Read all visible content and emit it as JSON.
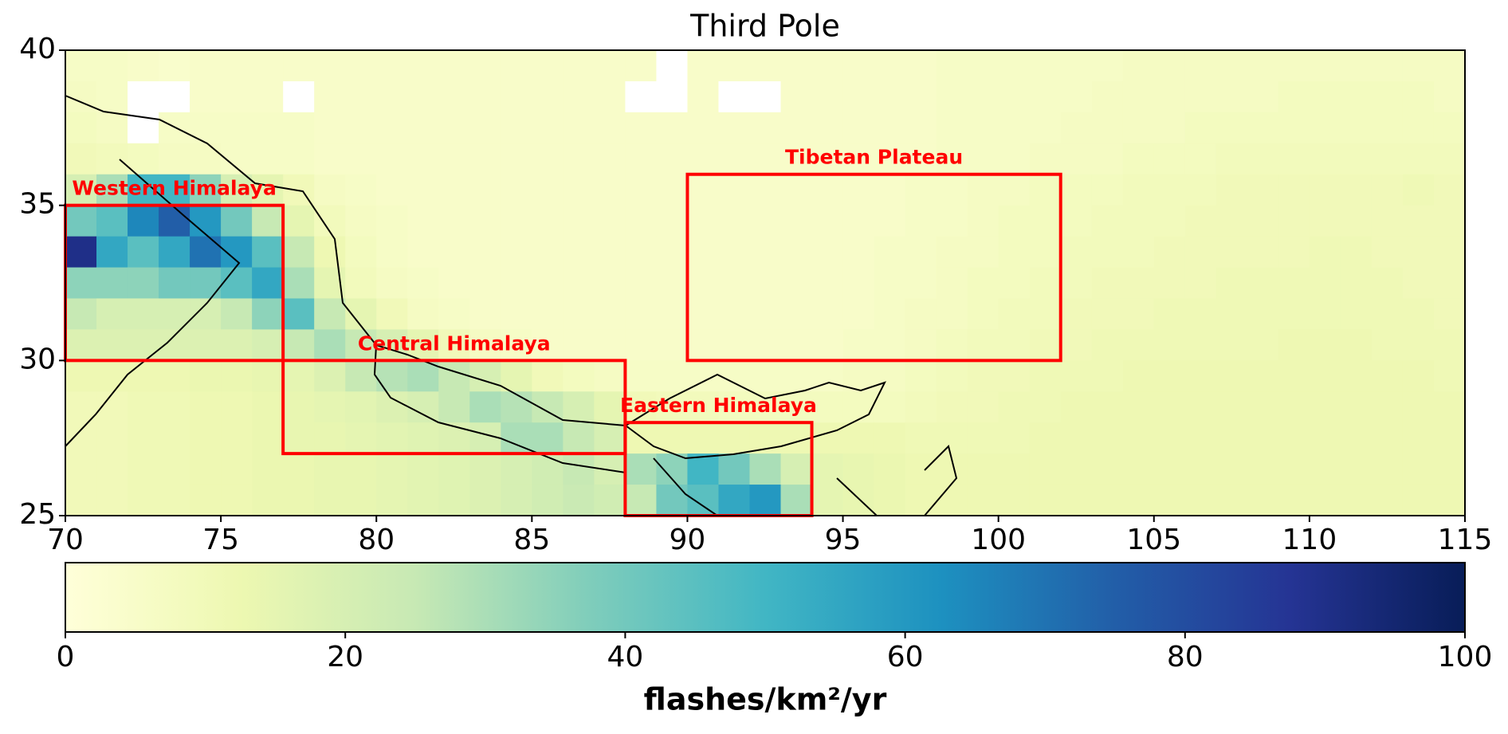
{
  "chart_data": {
    "type": "heatmap",
    "title": "Third Pole",
    "xlim": [
      70,
      115
    ],
    "xticks": [
      70,
      75,
      80,
      85,
      90,
      95,
      100,
      105,
      110,
      115
    ],
    "ylim": [
      25,
      40
    ],
    "yticks": [
      25,
      30,
      35,
      40
    ],
    "x": [
      70.5,
      71.5,
      72.5,
      73.5,
      74.5,
      75.5,
      76.5,
      77.5,
      78.5,
      79.5,
      80.5,
      81.5,
      82.5,
      83.5,
      84.5,
      85.5,
      86.5,
      87.5,
      88.5,
      89.5,
      90.5,
      91.5,
      92.5,
      93.5,
      94.5,
      95.5,
      96.5,
      97.5,
      98.5,
      99.5,
      100.5,
      101.5,
      102.5,
      103.5,
      104.5,
      105.5,
      106.5,
      107.5,
      108.5,
      109.5,
      110.5,
      111.5,
      112.5,
      113.5,
      114.5
    ],
    "y": [
      39.5,
      38.5,
      37.5,
      36.5,
      35.5,
      34.5,
      33.5,
      32.5,
      31.5,
      30.5,
      29.5,
      28.5,
      27.5,
      26.5,
      25.5
    ],
    "z": [
      [
        6,
        6,
        5,
        4,
        5,
        5,
        5,
        5,
        5,
        5,
        5,
        5,
        5,
        5,
        5,
        5,
        5,
        5,
        5,
        null,
        5,
        5,
        5,
        5,
        5,
        5,
        5,
        5,
        6,
        6,
        6,
        6,
        6,
        6,
        7,
        7,
        7,
        7,
        7,
        7,
        7,
        7,
        7,
        7,
        7
      ],
      [
        7,
        6,
        null,
        null,
        5,
        5,
        5,
        null,
        5,
        5,
        5,
        5,
        5,
        5,
        5,
        5,
        5,
        5,
        null,
        null,
        5,
        null,
        null,
        5,
        5,
        5,
        5,
        5,
        6,
        6,
        6,
        6,
        6,
        7,
        7,
        7,
        7,
        7,
        7,
        8,
        8,
        8,
        8,
        8,
        7
      ],
      [
        8,
        7,
        null,
        6,
        6,
        6,
        6,
        6,
        5,
        5,
        5,
        5,
        5,
        5,
        5,
        5,
        5,
        5,
        5,
        5,
        5,
        5,
        5,
        5,
        5,
        5,
        5,
        5,
        6,
        6,
        6,
        6,
        7,
        7,
        7,
        7,
        8,
        8,
        8,
        8,
        8,
        8,
        8,
        8,
        8
      ],
      [
        10,
        9,
        8,
        7,
        7,
        6,
        6,
        6,
        5,
        5,
        5,
        5,
        5,
        5,
        5,
        5,
        5,
        5,
        5,
        5,
        5,
        5,
        5,
        5,
        5,
        5,
        5,
        5,
        6,
        6,
        6,
        7,
        7,
        7,
        8,
        8,
        8,
        9,
        9,
        9,
        9,
        9,
        9,
        9,
        9
      ],
      [
        20,
        30,
        50,
        50,
        35,
        20,
        15,
        10,
        7,
        6,
        5,
        5,
        5,
        5,
        5,
        5,
        5,
        5,
        5,
        5,
        5,
        5,
        5,
        5,
        5,
        5,
        5,
        6,
        6,
        7,
        7,
        8,
        8,
        8,
        9,
        9,
        9,
        10,
        10,
        10,
        10,
        10,
        10,
        11,
        10
      ],
      [
        40,
        45,
        65,
        75,
        60,
        40,
        25,
        15,
        9,
        7,
        6,
        5,
        5,
        5,
        5,
        5,
        5,
        5,
        5,
        5,
        5,
        5,
        5,
        5,
        5,
        5,
        5,
        6,
        6,
        7,
        8,
        8,
        8,
        9,
        9,
        9,
        10,
        10,
        10,
        10,
        10,
        10,
        10,
        10,
        10
      ],
      [
        90,
        55,
        45,
        55,
        70,
        60,
        45,
        25,
        12,
        8,
        6,
        5,
        5,
        5,
        5,
        5,
        5,
        5,
        5,
        5,
        5,
        5,
        5,
        5,
        5,
        5,
        6,
        6,
        7,
        7,
        8,
        8,
        9,
        9,
        9,
        10,
        10,
        10,
        10,
        10,
        11,
        11,
        10,
        10,
        10
      ],
      [
        35,
        35,
        35,
        40,
        40,
        45,
        55,
        30,
        15,
        9,
        7,
        6,
        5,
        5,
        5,
        5,
        5,
        5,
        5,
        5,
        5,
        5,
        5,
        5,
        5,
        5,
        6,
        6,
        7,
        8,
        8,
        9,
        9,
        10,
        10,
        10,
        10,
        11,
        11,
        11,
        11,
        11,
        11,
        10,
        10
      ],
      [
        25,
        20,
        20,
        20,
        20,
        25,
        35,
        45,
        25,
        15,
        10,
        7,
        6,
        5,
        5,
        5,
        5,
        5,
        5,
        5,
        5,
        5,
        5,
        5,
        5,
        5,
        6,
        7,
        7,
        8,
        9,
        9,
        10,
        10,
        10,
        11,
        11,
        11,
        11,
        11,
        11,
        11,
        11,
        11,
        10
      ],
      [
        18,
        18,
        18,
        18,
        18,
        18,
        20,
        25,
        30,
        25,
        20,
        15,
        10,
        7,
        6,
        5,
        5,
        5,
        5,
        5,
        5,
        5,
        5,
        5,
        5,
        6,
        6,
        7,
        8,
        9,
        9,
        10,
        10,
        11,
        11,
        11,
        11,
        11,
        11,
        12,
        12,
        12,
        11,
        11,
        11
      ],
      [
        12,
        12,
        12,
        12,
        13,
        13,
        14,
        15,
        18,
        25,
        28,
        30,
        25,
        20,
        15,
        10,
        8,
        7,
        6,
        6,
        6,
        6,
        6,
        6,
        6,
        7,
        7,
        8,
        9,
        10,
        10,
        11,
        11,
        11,
        12,
        12,
        12,
        12,
        12,
        12,
        12,
        12,
        12,
        12,
        11
      ],
      [
        10,
        10,
        11,
        11,
        12,
        12,
        13,
        14,
        15,
        16,
        18,
        20,
        25,
        30,
        28,
        25,
        20,
        15,
        10,
        9,
        9,
        8,
        8,
        8,
        8,
        8,
        8,
        9,
        10,
        10,
        11,
        11,
        12,
        12,
        12,
        12,
        12,
        12,
        12,
        12,
        12,
        12,
        12,
        12,
        12
      ],
      [
        10,
        10,
        11,
        11,
        12,
        12,
        13,
        14,
        14,
        15,
        16,
        17,
        18,
        20,
        30,
        30,
        25,
        20,
        12,
        12,
        12,
        12,
        12,
        12,
        12,
        12,
        12,
        11,
        11,
        11,
        11,
        12,
        12,
        12,
        12,
        12,
        12,
        12,
        12,
        12,
        12,
        12,
        12,
        12,
        12
      ],
      [
        10,
        10,
        11,
        11,
        12,
        12,
        13,
        13,
        14,
        14,
        15,
        16,
        17,
        18,
        20,
        22,
        25,
        20,
        30,
        35,
        50,
        40,
        30,
        20,
        15,
        14,
        13,
        12,
        12,
        12,
        12,
        12,
        12,
        12,
        12,
        12,
        12,
        12,
        12,
        12,
        12,
        12,
        12,
        12,
        12
      ],
      [
        10,
        10,
        11,
        11,
        12,
        12,
        13,
        13,
        14,
        14,
        15,
        16,
        17,
        18,
        20,
        22,
        24,
        22,
        25,
        40,
        45,
        55,
        60,
        30,
        15,
        14,
        13,
        12,
        12,
        12,
        12,
        12,
        12,
        12,
        12,
        12,
        12,
        12,
        12,
        12,
        12,
        12,
        12,
        12,
        12
      ]
    ],
    "colormap": [
      "#ffffd9",
      "#edf8b1",
      "#c7e9b4",
      "#7fcdbb",
      "#41b6c4",
      "#1d91c0",
      "#225ea8",
      "#253494",
      "#081d58"
    ],
    "missing_color": "#ffffff",
    "clim": [
      0,
      100
    ],
    "cticks": [
      0,
      20,
      40,
      60,
      80,
      100
    ],
    "colorbar_label": "flashes/km²/yr",
    "region_color": "#ff0000",
    "regions": [
      {
        "name": "Western Himalaya",
        "lon": [
          70,
          77
        ],
        "lat": [
          30,
          35
        ]
      },
      {
        "name": "Central Himalaya",
        "lon": [
          77,
          88
        ],
        "lat": [
          27,
          30
        ]
      },
      {
        "name": "Eastern Himalaya",
        "lon": [
          88,
          94
        ],
        "lat": [
          25,
          28
        ]
      },
      {
        "name": "Tibetan Plateau",
        "lon": [
          90,
          102
        ],
        "lat": [
          30,
          36
        ]
      }
    ]
  }
}
